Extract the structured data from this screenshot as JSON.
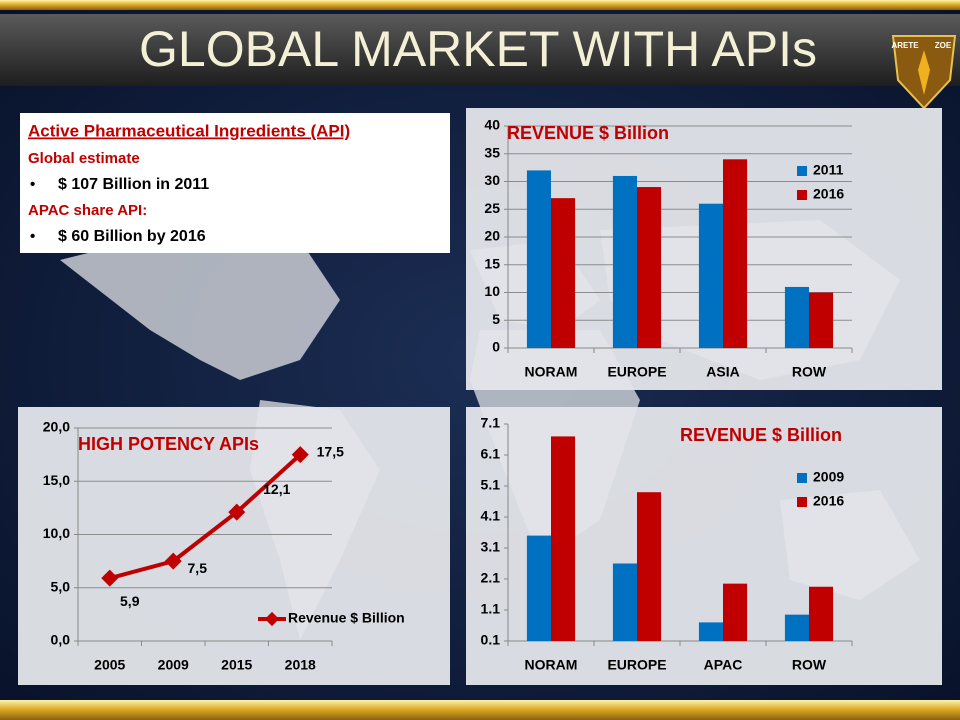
{
  "header": {
    "title": "GLOBAL MARKET WITH APIs",
    "logo_texts": [
      "ARETE",
      "ZOE"
    ]
  },
  "info": {
    "heading": "Active Pharmaceutical Ingredients (API)",
    "sections": [
      {
        "label": "Global estimate",
        "bullets": [
          "$ 107 Billion in 2011"
        ]
      },
      {
        "label": "APAC share API:",
        "bullets": [
          "$ 60 Billion by 2016"
        ]
      }
    ]
  },
  "chart_data": [
    {
      "type": "bar",
      "title": "REVENUE $ Billion",
      "categories": [
        "NORAM",
        "EUROPE",
        "ASIA",
        "ROW"
      ],
      "series": [
        {
          "name": "2011",
          "color": "#0070c0",
          "values": [
            32,
            31,
            26,
            11
          ]
        },
        {
          "name": "2016",
          "color": "#c00000",
          "values": [
            27,
            29,
            34,
            10
          ]
        }
      ],
      "ylim": [
        0,
        40
      ],
      "yticks": [
        0,
        5,
        10,
        15,
        20,
        25,
        30,
        35,
        40
      ],
      "grid": true
    },
    {
      "type": "line",
      "title": "HIGH POTENCY APIs",
      "categories": [
        "2005",
        "2009",
        "2015",
        "2018"
      ],
      "series": [
        {
          "name": "Revenue $ Billion",
          "color": "#c00000",
          "values": [
            5.9,
            7.5,
            12.1,
            17.5
          ],
          "value_labels": [
            "5,9",
            "7,5",
            "12,1",
            "17,5"
          ]
        }
      ],
      "ylim": [
        0,
        20
      ],
      "yticks": [
        {
          "value": 0,
          "label": "0,0"
        },
        {
          "value": 5,
          "label": "5,0"
        },
        {
          "value": 10,
          "label": "10,0"
        },
        {
          "value": 15,
          "label": "15,0"
        },
        {
          "value": 20,
          "label": "20,0"
        }
      ],
      "grid": true
    },
    {
      "type": "bar",
      "title": "REVENUE $ Billion",
      "categories": [
        "NORAM",
        "EUROPE",
        "APAC",
        "ROW"
      ],
      "series": [
        {
          "name": "2009",
          "color": "#0070c0",
          "values": [
            3.5,
            2.6,
            0.7,
            0.95
          ]
        },
        {
          "name": "2016",
          "color": "#c00000",
          "values": [
            6.7,
            4.9,
            1.95,
            1.85
          ]
        }
      ],
      "ylim": [
        0.1,
        7.1
      ],
      "yticks": [
        0.1,
        1.1,
        2.1,
        3.1,
        4.1,
        5.1,
        6.1,
        7.1
      ],
      "grid": false
    }
  ]
}
